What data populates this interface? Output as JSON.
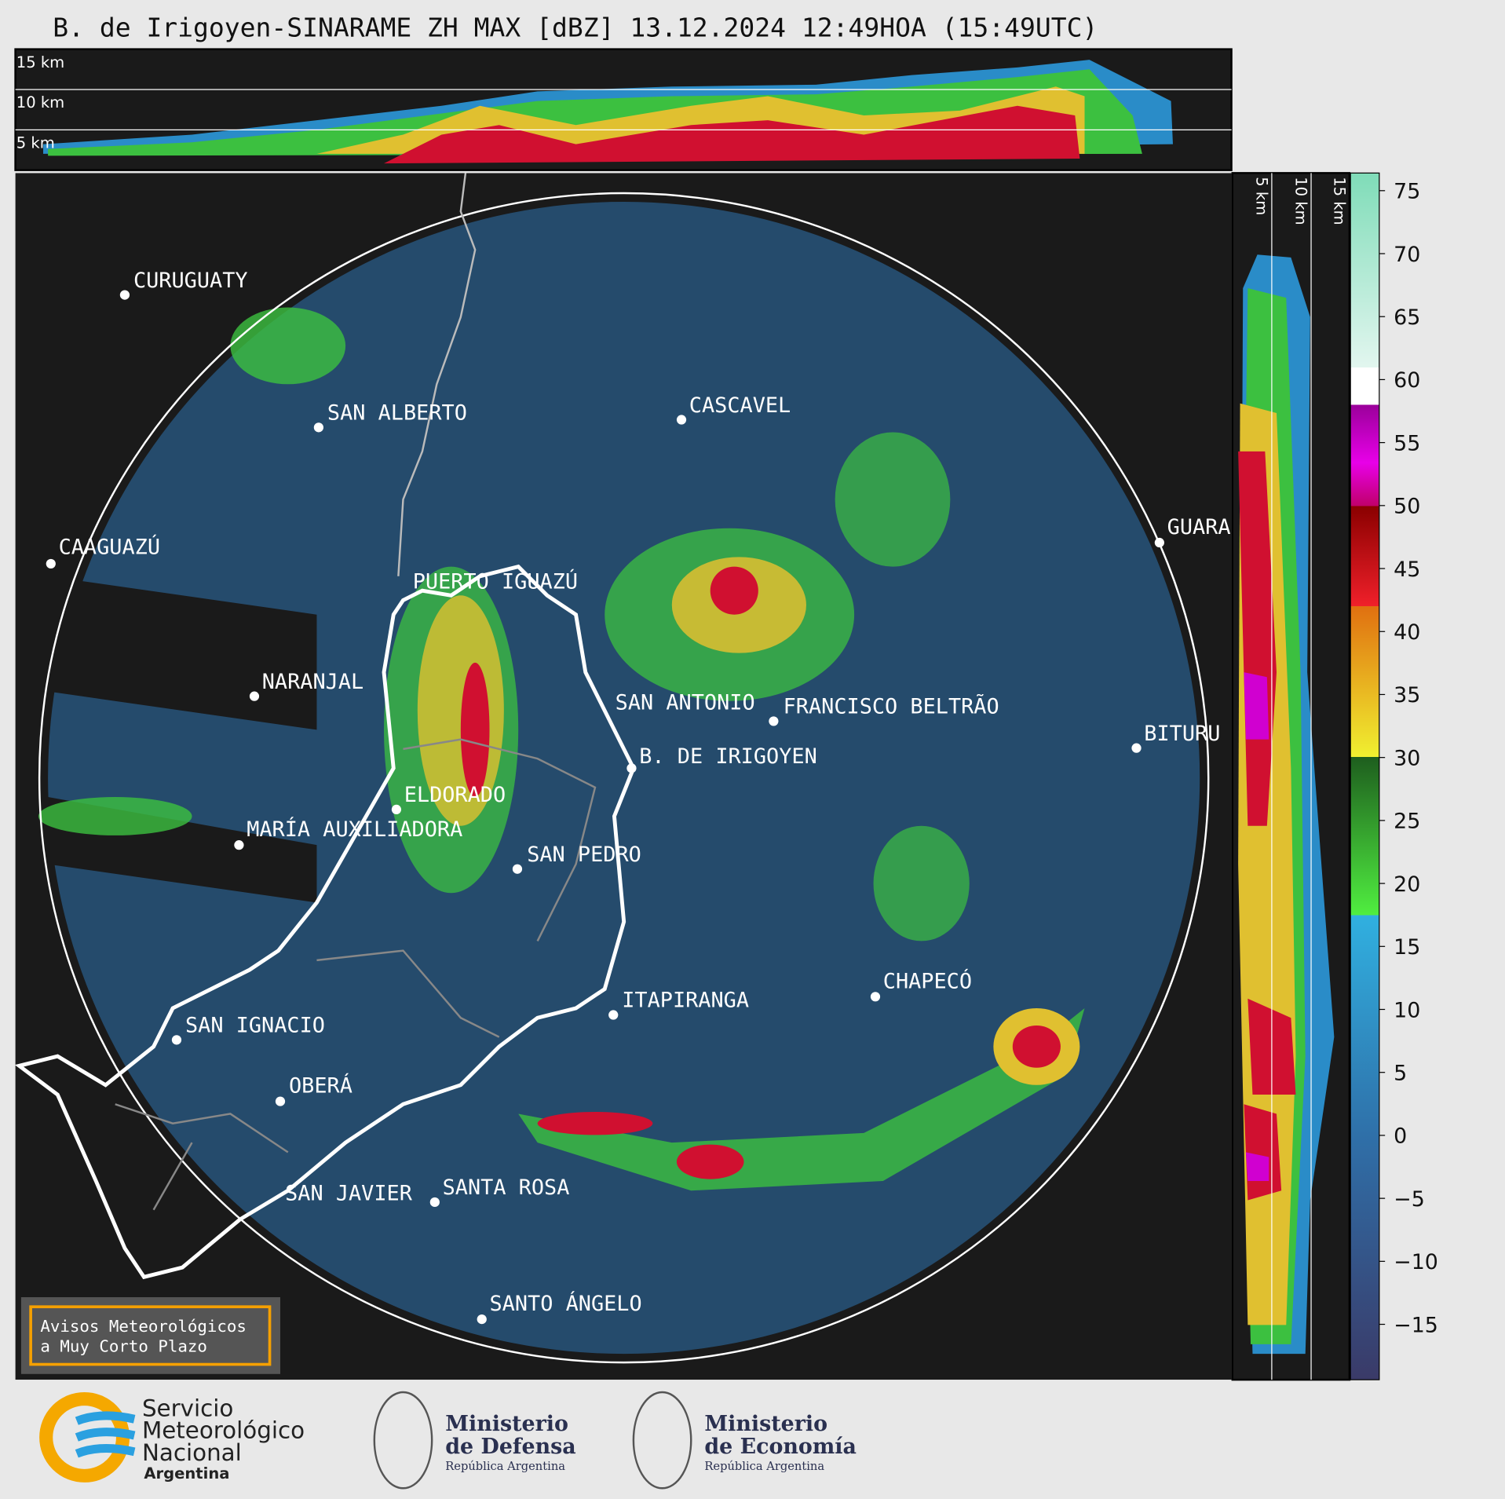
{
  "title": "B. de Irigoyen-SINARAME ZH MAX [dBZ] 13.12.2024 12:49HOA (15:49UTC)",
  "height_labels": [
    "15 km",
    "10 km",
    "5 km"
  ],
  "cities": [
    {
      "name": "CURUGUATY"
    },
    {
      "name": "SAN ALBERTO"
    },
    {
      "name": "CAAGUAZÚ"
    },
    {
      "name": "PUERTO IGUAZÚ"
    },
    {
      "name": "NARANJAL"
    },
    {
      "name": "ELDORADO"
    },
    {
      "name": "MARÍA AUXILIADORA"
    },
    {
      "name": "SAN PEDRO"
    },
    {
      "name": "CASCAVEL"
    },
    {
      "name": "SAN ANTONIO"
    },
    {
      "name": "FRANCISCO BELTRÃO"
    },
    {
      "name": "B. DE IRIGOYEN"
    },
    {
      "name": "GUARA"
    },
    {
      "name": "BITURU"
    },
    {
      "name": "CHAPECÓ"
    },
    {
      "name": "ITAPIRANGA"
    },
    {
      "name": "SAN IGNACIO"
    },
    {
      "name": "OBERÁ"
    },
    {
      "name": "SAN JAVIER"
    },
    {
      "name": "SANTA ROSA"
    },
    {
      "name": "SANTO ÁNGELO"
    }
  ],
  "colorbar": {
    "lim": [
      -19.4,
      76.4
    ],
    "ticks": [
      75,
      70,
      65,
      60,
      55,
      50,
      45,
      40,
      35,
      30,
      25,
      20,
      15,
      10,
      5,
      0,
      {
        "value": -5,
        "label": "−5"
      },
      {
        "value": -10,
        "label": "−10"
      },
      {
        "value": -15,
        "label": "−15"
      }
    ]
  },
  "notice": [
    "Avisos Meteorológicos",
    "a Muy Corto Plazo"
  ],
  "logos": {
    "smn": [
      "Servicio",
      "Meteorológico",
      "Nacional",
      "Argentina"
    ],
    "defensa": [
      "Ministerio",
      "de Defensa",
      "República Argentina"
    ],
    "economia": [
      "Ministerio",
      "de Economía",
      "República Argentina"
    ]
  }
}
